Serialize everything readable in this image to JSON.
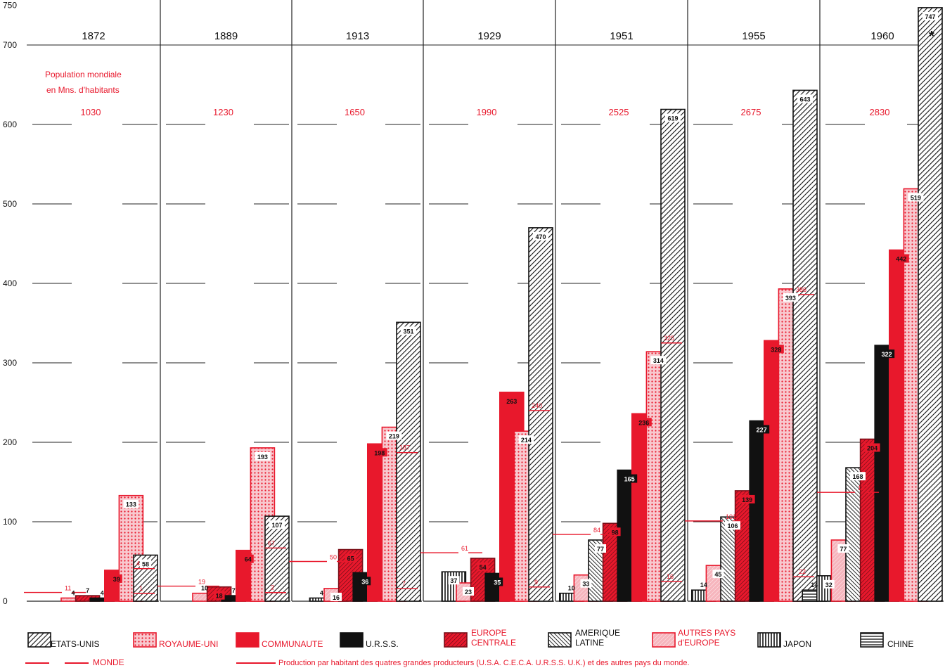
{
  "chart_data": {
    "type": "bar",
    "y_ticks": [
      0,
      100,
      200,
      300,
      400,
      500,
      600,
      700,
      750
    ],
    "ylim": [
      0,
      750
    ],
    "population_caption_line1": "Population mondiale",
    "population_caption_line2": "en Mns. d'habitants",
    "years": [
      {
        "year": "1872",
        "population": "1030",
        "monde": 11,
        "other_level": 41,
        "other_low": 1,
        "marker": ""
      },
      {
        "year": "1889",
        "population": "1230",
        "monde": 19,
        "other_level": 67,
        "other_low": 2,
        "marker": ""
      },
      {
        "year": "1913",
        "population": "1650",
        "monde": 50,
        "other_level": 187,
        "other_low": 7,
        "marker": ""
      },
      {
        "year": "1929",
        "population": "1990",
        "monde": 61,
        "other_level": 240,
        "other_low": 9,
        "marker": ""
      },
      {
        "year": "1951",
        "population": "2525",
        "monde": 84,
        "other_level": 325,
        "other_low": 16,
        "marker": ""
      },
      {
        "year": "1955",
        "population": "2675",
        "monde": 101,
        "other_level": 386,
        "other_low": 22,
        "marker": ""
      },
      {
        "year": "1960",
        "population": "2830",
        "monde": 137,
        "other_level": null,
        "other_low": null,
        "marker": "*"
      }
    ],
    "series": [
      {
        "key": "chine",
        "name": "CHINE",
        "pattern": "hstripe",
        "values": [
          null,
          null,
          null,
          null,
          null,
          null,
          14
        ]
      },
      {
        "key": "japon",
        "name": "JAPON",
        "pattern": "vstripe",
        "values": [
          null,
          null,
          4,
          37,
          10,
          14,
          32
        ]
      },
      {
        "key": "autres",
        "name": "AUTRES PAYS d'EUROPE",
        "pattern": "pinkfill",
        "values": [
          4,
          10,
          16,
          23,
          33,
          45,
          77
        ]
      },
      {
        "key": "amlat",
        "name": "AMERIQUE LATINE",
        "pattern": "bwhatch",
        "values": [
          null,
          null,
          null,
          null,
          77,
          106,
          168
        ]
      },
      {
        "key": "eurc",
        "name": "EUROPE CENTRALE",
        "pattern": "redhatch",
        "values": [
          7,
          18,
          65,
          54,
          98,
          139,
          204
        ]
      },
      {
        "key": "urss",
        "name": "U.R.S.S.",
        "pattern": "black",
        "values": [
          4,
          7,
          36,
          35,
          165,
          227,
          322
        ]
      },
      {
        "key": "comm",
        "name": "COMMUNAUTE",
        "pattern": "red",
        "values": [
          39,
          64,
          198,
          263,
          236,
          328,
          442
        ]
      },
      {
        "key": "ru",
        "name": "ROYAUME-UNI",
        "pattern": "dots",
        "values": [
          133,
          193,
          219,
          214,
          314,
          393,
          519
        ]
      },
      {
        "key": "eu",
        "name": "ETATS-UNIS",
        "pattern": "hatch",
        "values": [
          58,
          107,
          351,
          470,
          619,
          643,
          747
        ]
      }
    ],
    "legend": [
      {
        "label": "ETATS-UNIS",
        "pattern": "hatch"
      },
      {
        "label": "ROYAUME-UNI",
        "pattern": "dots"
      },
      {
        "label": "COMMUNAUTE",
        "pattern": "red"
      },
      {
        "label": "U.R.S.S.",
        "pattern": "black"
      },
      {
        "label": "EUROPE CENTRALE",
        "label_line1": "EUROPE",
        "label_line2": "CENTRALE",
        "pattern": "redhatch"
      },
      {
        "label": "AMERIQUE LATINE",
        "label_line1": "AMERIQUE",
        "label_line2": "LATINE",
        "pattern": "bwhatch"
      },
      {
        "label": "AUTRES PAYS d'EUROPE",
        "label_line1": "AUTRES PAYS",
        "label_line2": "d'EUROPE",
        "pattern": "pinkfill"
      },
      {
        "label": "JAPON",
        "pattern": "vstripe"
      },
      {
        "label": "CHINE",
        "pattern": "hstripe"
      }
    ],
    "monde_label": "MONDE",
    "footnote": "Production par habitant des quatres grandes producteurs (U.S.A. C.E.C.A. U.R.S.S. U.K.) et des autres pays du monde.",
    "colors": {
      "red": "#e8182c",
      "pink": "#f39aa5",
      "black": "#111111",
      "grid": "#222222"
    }
  }
}
